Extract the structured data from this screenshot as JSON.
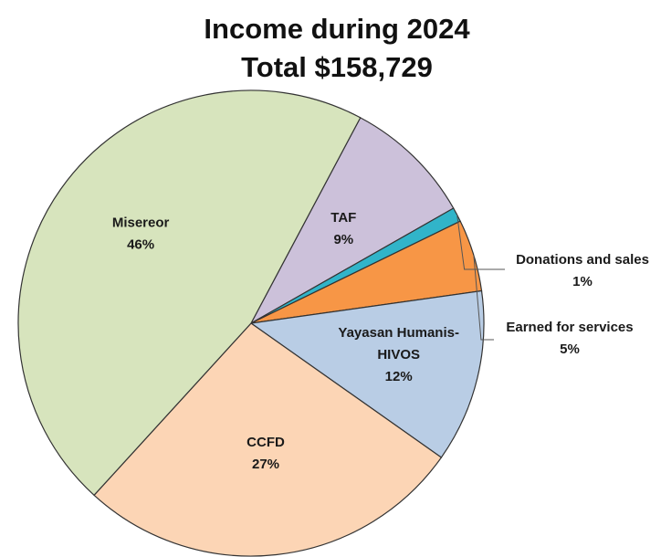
{
  "chart_data": {
    "type": "pie",
    "title": "Income during 2024",
    "subtitle": "Total $158,729",
    "slices": [
      {
        "name": "TAF",
        "percent_label": "9%",
        "value": 9,
        "color": "#ccc1da"
      },
      {
        "name": "Donations and sales",
        "percent_label": "1%",
        "value": 1,
        "color": "#31b4c9"
      },
      {
        "name": "Earned for services",
        "percent_label": "5%",
        "value": 5,
        "color": "#f79646"
      },
      {
        "name": "Yayasan Humanis-HIVOS",
        "percent_label": "12%",
        "value": 12,
        "color": "#b9cde5"
      },
      {
        "name": "CCFD",
        "percent_label": "27%",
        "value": 27,
        "color": "#fcd5b5"
      },
      {
        "name": "Misereor",
        "percent_label": "46%",
        "value": 46,
        "color": "#d7e4bd"
      }
    ]
  }
}
